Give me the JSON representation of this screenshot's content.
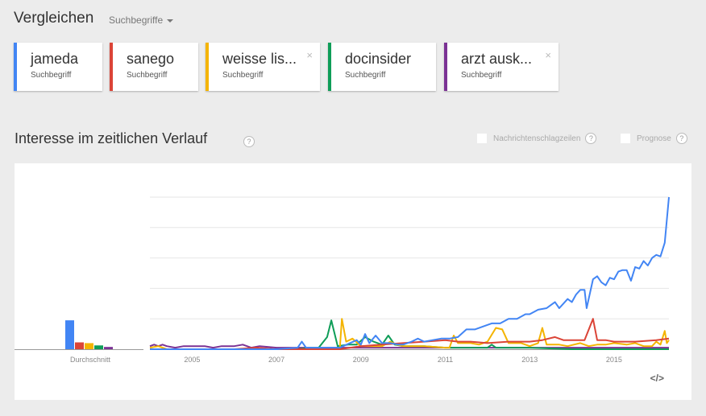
{
  "header": {
    "title": "Vergleichen",
    "compare_type": "Suchbegriffe"
  },
  "terms": [
    {
      "label": "jameda",
      "sub": "Suchbegriff",
      "color": "#4285f4",
      "closable": false
    },
    {
      "label": "sanego",
      "sub": "Suchbegriff",
      "color": "#db4437",
      "closable": false
    },
    {
      "label": "weisse lis...",
      "sub": "Suchbegriff",
      "color": "#f4b400",
      "closable": true
    },
    {
      "label": "docinsider",
      "sub": "Suchbegriff",
      "color": "#0f9d58",
      "closable": false
    },
    {
      "label": "arzt ausk...",
      "sub": "Suchbegriff",
      "color": "#7b3294",
      "closable": true
    }
  ],
  "section": {
    "title": "Interesse im zeitlichen Verlauf",
    "help": "?",
    "options": [
      {
        "label": "Nachrichtenschlagzeilen",
        "checked": false,
        "help": "?"
      },
      {
        "label": "Prognose",
        "checked": false,
        "help": "?"
      }
    ],
    "embed_label": "</>",
    "close_glyph": "×"
  },
  "chart_data": {
    "type": "line",
    "title": "Interesse im zeitlichen Verlauf",
    "xlabel": "",
    "ylabel": "",
    "ylim": [
      0,
      100
    ],
    "grid": true,
    "x_ticks": [
      "2005",
      "2007",
      "2009",
      "2011",
      "2013",
      "2015"
    ],
    "x_range": [
      "2004-01",
      "2016-03"
    ],
    "average_label": "Durchschnitt",
    "averages": [
      {
        "name": "jameda",
        "value": 19
      },
      {
        "name": "sanego",
        "value": 4.5
      },
      {
        "name": "weisse liste",
        "value": 4
      },
      {
        "name": "docinsider",
        "value": 2.5
      },
      {
        "name": "arzt auskunft",
        "value": 1.5
      }
    ],
    "series": [
      {
        "name": "jameda",
        "color": "#4285f4",
        "points": [
          [
            2004.0,
            0
          ],
          [
            2007.0,
            0
          ],
          [
            2007.5,
            1
          ],
          [
            2007.6,
            5
          ],
          [
            2007.7,
            1
          ],
          [
            2008.5,
            1
          ],
          [
            2008.9,
            6
          ],
          [
            2009.0,
            3
          ],
          [
            2009.1,
            10
          ],
          [
            2009.2,
            4
          ],
          [
            2009.35,
            9
          ],
          [
            2009.5,
            4
          ],
          [
            2009.7,
            4
          ],
          [
            2009.9,
            3
          ],
          [
            2010.0,
            3
          ],
          [
            2010.2,
            5
          ],
          [
            2010.35,
            7
          ],
          [
            2010.5,
            5
          ],
          [
            2010.7,
            6
          ],
          [
            2010.9,
            7
          ],
          [
            2011.1,
            7
          ],
          [
            2011.3,
            8
          ],
          [
            2011.5,
            13
          ],
          [
            2011.7,
            13
          ],
          [
            2011.9,
            15
          ],
          [
            2012.1,
            17
          ],
          [
            2012.3,
            17
          ],
          [
            2012.5,
            20
          ],
          [
            2012.7,
            20
          ],
          [
            2012.9,
            23
          ],
          [
            2013.0,
            23
          ],
          [
            2013.2,
            26
          ],
          [
            2013.4,
            27
          ],
          [
            2013.5,
            29
          ],
          [
            2013.6,
            31
          ],
          [
            2013.7,
            27
          ],
          [
            2013.8,
            30
          ],
          [
            2013.9,
            33
          ],
          [
            2014.0,
            31
          ],
          [
            2014.1,
            36
          ],
          [
            2014.2,
            39
          ],
          [
            2014.3,
            39
          ],
          [
            2014.35,
            27
          ],
          [
            2014.5,
            46
          ],
          [
            2014.6,
            48
          ],
          [
            2014.7,
            44
          ],
          [
            2014.8,
            42
          ],
          [
            2014.9,
            47
          ],
          [
            2015.0,
            46
          ],
          [
            2015.1,
            51
          ],
          [
            2015.2,
            52
          ],
          [
            2015.3,
            52
          ],
          [
            2015.4,
            45
          ],
          [
            2015.5,
            54
          ],
          [
            2015.6,
            53
          ],
          [
            2015.7,
            58
          ],
          [
            2015.8,
            55
          ],
          [
            2015.9,
            60
          ],
          [
            2016.0,
            62
          ],
          [
            2016.1,
            61
          ],
          [
            2016.2,
            70
          ],
          [
            2016.25,
            85
          ],
          [
            2016.3,
            100
          ]
        ]
      },
      {
        "name": "sanego",
        "color": "#db4437",
        "points": [
          [
            2004.0,
            0
          ],
          [
            2006.0,
            0
          ],
          [
            2006.5,
            1
          ],
          [
            2007.0,
            0
          ],
          [
            2008.5,
            0
          ],
          [
            2009.0,
            2
          ],
          [
            2009.5,
            3
          ],
          [
            2010.0,
            4
          ],
          [
            2010.5,
            5
          ],
          [
            2011.0,
            6
          ],
          [
            2011.3,
            5
          ],
          [
            2011.6,
            5
          ],
          [
            2012.0,
            4
          ],
          [
            2012.5,
            5
          ],
          [
            2013.0,
            5
          ],
          [
            2013.3,
            6
          ],
          [
            2013.6,
            8
          ],
          [
            2013.8,
            6
          ],
          [
            2014.0,
            6
          ],
          [
            2014.3,
            6
          ],
          [
            2014.5,
            20
          ],
          [
            2014.6,
            6
          ],
          [
            2014.8,
            6
          ],
          [
            2015.0,
            5
          ],
          [
            2015.5,
            5
          ],
          [
            2016.0,
            6
          ],
          [
            2016.3,
            7
          ]
        ]
      },
      {
        "name": "weisse liste",
        "color": "#f4b400",
        "points": [
          [
            2004.0,
            1
          ],
          [
            2004.2,
            2
          ],
          [
            2004.4,
            0
          ],
          [
            2007.0,
            0
          ],
          [
            2008.0,
            0
          ],
          [
            2008.5,
            0
          ],
          [
            2008.55,
            20
          ],
          [
            2008.65,
            5
          ],
          [
            2008.8,
            7
          ],
          [
            2009.0,
            2
          ],
          [
            2009.5,
            2
          ],
          [
            2009.7,
            5
          ],
          [
            2009.85,
            3
          ],
          [
            2010.0,
            2
          ],
          [
            2010.5,
            2
          ],
          [
            2011.0,
            1
          ],
          [
            2011.1,
            1
          ],
          [
            2011.2,
            9
          ],
          [
            2011.3,
            4
          ],
          [
            2011.6,
            4
          ],
          [
            2011.8,
            3
          ],
          [
            2012.0,
            5
          ],
          [
            2012.2,
            14
          ],
          [
            2012.35,
            13
          ],
          [
            2012.5,
            4
          ],
          [
            2012.8,
            4
          ],
          [
            2013.0,
            2
          ],
          [
            2013.2,
            4
          ],
          [
            2013.3,
            14
          ],
          [
            2013.4,
            3
          ],
          [
            2013.7,
            3
          ],
          [
            2013.9,
            2
          ],
          [
            2014.2,
            4
          ],
          [
            2014.4,
            2
          ],
          [
            2014.6,
            3
          ],
          [
            2014.8,
            3
          ],
          [
            2015.0,
            4
          ],
          [
            2015.3,
            3
          ],
          [
            2015.5,
            4
          ],
          [
            2015.7,
            2
          ],
          [
            2015.9,
            2
          ],
          [
            2016.0,
            5
          ],
          [
            2016.1,
            3
          ],
          [
            2016.2,
            12
          ],
          [
            2016.25,
            4
          ],
          [
            2016.3,
            6
          ]
        ]
      },
      {
        "name": "docinsider",
        "color": "#0f9d58",
        "points": [
          [
            2004.0,
            0
          ],
          [
            2007.5,
            0
          ],
          [
            2007.8,
            1
          ],
          [
            2008.0,
            1
          ],
          [
            2008.2,
            8
          ],
          [
            2008.3,
            19
          ],
          [
            2008.45,
            2
          ],
          [
            2008.7,
            3
          ],
          [
            2008.9,
            3
          ],
          [
            2009.1,
            8
          ],
          [
            2009.3,
            5
          ],
          [
            2009.5,
            3
          ],
          [
            2009.65,
            9
          ],
          [
            2009.8,
            3
          ],
          [
            2010.0,
            2
          ],
          [
            2010.5,
            2
          ],
          [
            2011.0,
            1
          ],
          [
            2011.5,
            1
          ],
          [
            2012.0,
            1
          ],
          [
            2012.1,
            3
          ],
          [
            2012.2,
            1
          ],
          [
            2013.0,
            1
          ],
          [
            2014.0,
            0
          ],
          [
            2016.3,
            0
          ]
        ]
      },
      {
        "name": "arzt auskunft",
        "color": "#7b3294",
        "points": [
          [
            2004.0,
            2
          ],
          [
            2004.1,
            3
          ],
          [
            2004.2,
            2
          ],
          [
            2004.3,
            3
          ],
          [
            2004.4,
            2
          ],
          [
            2004.6,
            1
          ],
          [
            2004.8,
            2
          ],
          [
            2005.0,
            2
          ],
          [
            2005.3,
            2
          ],
          [
            2005.5,
            1
          ],
          [
            2005.7,
            2
          ],
          [
            2006.0,
            2
          ],
          [
            2006.2,
            3
          ],
          [
            2006.4,
            1
          ],
          [
            2006.6,
            2
          ],
          [
            2007.0,
            1
          ],
          [
            2008.0,
            1
          ],
          [
            2009.0,
            1
          ],
          [
            2010.0,
            1
          ],
          [
            2012.0,
            1
          ],
          [
            2014.0,
            1
          ],
          [
            2016.3,
            1
          ]
        ]
      }
    ]
  }
}
